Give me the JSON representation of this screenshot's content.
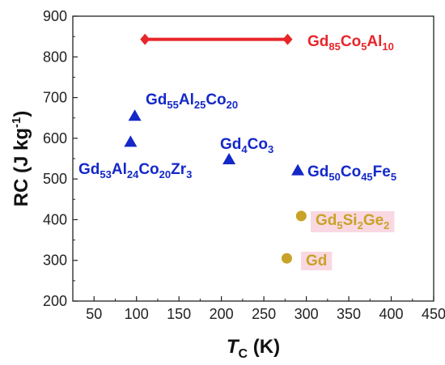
{
  "chart_data": {
    "type": "scatter",
    "xlabel": {
      "main": "T",
      "sub": "C",
      "unit": "(K)"
    },
    "ylabel": {
      "main": "RC (J kg",
      "sup": "-1",
      "close": ")"
    },
    "xlim": [
      25,
      450
    ],
    "ylim": [
      200,
      900
    ],
    "x_ticks": [
      50,
      100,
      150,
      200,
      250,
      300,
      350,
      400,
      450
    ],
    "y_ticks": [
      200,
      300,
      400,
      500,
      600,
      700,
      800,
      900
    ],
    "grid": false,
    "colors": {
      "red": "#e8262a",
      "blue": "#1428c8",
      "gold": "#c9a227",
      "highlight": "#f9d8e2"
    },
    "series": [
      {
        "label_parts": [
          [
            "Gd",
            "n"
          ],
          [
            "85",
            "s"
          ],
          [
            "Co",
            "n"
          ],
          [
            "5",
            "s"
          ],
          [
            "Al",
            "n"
          ],
          [
            "10",
            "s"
          ]
        ],
        "marker": "diamond",
        "color_key": "red",
        "range": true,
        "points": [
          [
            110,
            843
          ],
          [
            278,
            843
          ]
        ]
      },
      {
        "label_parts": [
          [
            "Gd",
            "n"
          ],
          [
            "55",
            "s"
          ],
          [
            "Al",
            "n"
          ],
          [
            "25",
            "s"
          ],
          [
            "Co",
            "n"
          ],
          [
            "20",
            "s"
          ]
        ],
        "marker": "triangle",
        "color_key": "blue",
        "points": [
          [
            98,
            655
          ]
        ]
      },
      {
        "label_parts": [
          [
            "Gd",
            "n"
          ],
          [
            "53",
            "s"
          ],
          [
            "Al",
            "n"
          ],
          [
            "24",
            "s"
          ],
          [
            "Co",
            "n"
          ],
          [
            "20",
            "s"
          ],
          [
            "Zr",
            "n"
          ],
          [
            "3",
            "s"
          ]
        ],
        "marker": "triangle",
        "color_key": "blue",
        "points": [
          [
            93,
            591
          ]
        ]
      },
      {
        "label_parts": [
          [
            "Gd",
            "n"
          ],
          [
            "4",
            "s"
          ],
          [
            "Co",
            "n"
          ],
          [
            "3",
            "s"
          ]
        ],
        "marker": "triangle",
        "color_key": "blue",
        "points": [
          [
            209,
            548
          ]
        ]
      },
      {
        "label_parts": [
          [
            "Gd",
            "n"
          ],
          [
            "50",
            "s"
          ],
          [
            "Co",
            "n"
          ],
          [
            "45",
            "s"
          ],
          [
            "Fe",
            "n"
          ],
          [
            "5",
            "s"
          ]
        ],
        "marker": "triangle",
        "color_key": "blue",
        "points": [
          [
            290,
            521
          ]
        ]
      },
      {
        "label_parts": [
          [
            "Gd",
            "n"
          ],
          [
            "5",
            "s"
          ],
          [
            "Si",
            "n"
          ],
          [
            "2",
            "s"
          ],
          [
            "Ge",
            "n"
          ],
          [
            "2",
            "s"
          ]
        ],
        "marker": "circle",
        "color_key": "gold",
        "highlight": true,
        "points": [
          [
            294,
            409
          ]
        ]
      },
      {
        "label_parts": [
          [
            "Gd",
            "n"
          ]
        ],
        "marker": "circle",
        "color_key": "gold",
        "highlight": true,
        "points": [
          [
            277,
            305
          ]
        ]
      }
    ]
  }
}
